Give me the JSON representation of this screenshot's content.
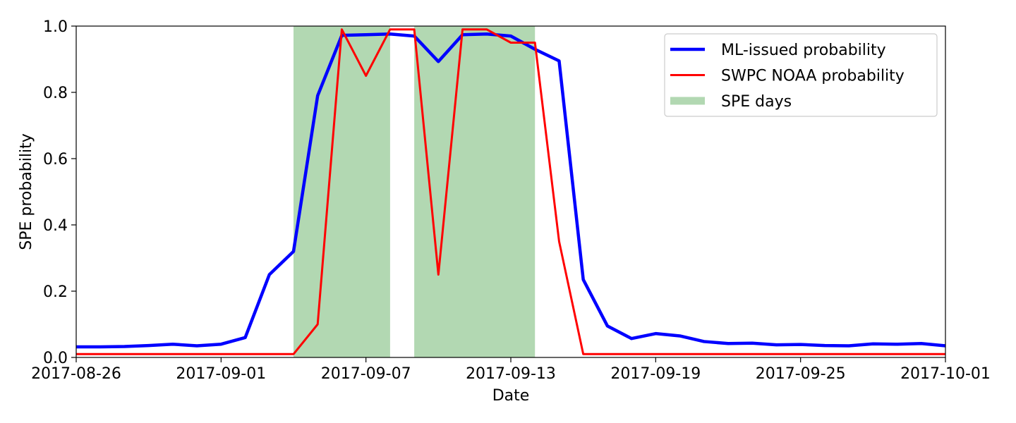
{
  "chart_data": {
    "type": "line",
    "xlabel": "Date",
    "ylabel": "SPE probability",
    "xlim": [
      "2017-08-26",
      "2017-10-01"
    ],
    "ylim": [
      0,
      1
    ],
    "x_ticks": [
      "2017-08-26",
      "2017-09-01",
      "2017-09-07",
      "2017-09-13",
      "2017-09-19",
      "2017-09-25",
      "2017-10-01"
    ],
    "y_ticks": [
      "0.0",
      "0.2",
      "0.4",
      "0.6",
      "0.8",
      "1.0"
    ],
    "grid": false,
    "legend_position": "top-right",
    "spe_days": [
      {
        "start": "2017-09-04",
        "end": "2017-09-08"
      },
      {
        "start": "2017-09-09",
        "end": "2017-09-14"
      }
    ],
    "series": [
      {
        "name": "ML-issued probability",
        "color": "#0000ff",
        "x": [
          "2017-08-26",
          "2017-08-27",
          "2017-08-28",
          "2017-08-29",
          "2017-08-30",
          "2017-08-31",
          "2017-09-01",
          "2017-09-02",
          "2017-09-03",
          "2017-09-04",
          "2017-09-05",
          "2017-09-06",
          "2017-09-07",
          "2017-09-08",
          "2017-09-09",
          "2017-09-10",
          "2017-09-11",
          "2017-09-12",
          "2017-09-13",
          "2017-09-14",
          "2017-09-15",
          "2017-09-16",
          "2017-09-17",
          "2017-09-18",
          "2017-09-19",
          "2017-09-20",
          "2017-09-21",
          "2017-09-22",
          "2017-09-23",
          "2017-09-24",
          "2017-09-25",
          "2017-09-26",
          "2017-09-27",
          "2017-09-28",
          "2017-09-29",
          "2017-09-30",
          "2017-10-01"
        ],
        "values": [
          0.032,
          0.032,
          0.033,
          0.036,
          0.04,
          0.035,
          0.04,
          0.06,
          0.25,
          0.32,
          0.79,
          0.972,
          0.974,
          0.976,
          0.97,
          0.893,
          0.974,
          0.976,
          0.97,
          0.93,
          0.895,
          0.235,
          0.095,
          0.057,
          0.072,
          0.065,
          0.048,
          0.042,
          0.043,
          0.038,
          0.039,
          0.036,
          0.035,
          0.041,
          0.04,
          0.042,
          0.035
        ]
      },
      {
        "name": "SWPC NOAA probability",
        "color": "#ff0000",
        "x": [
          "2017-08-26",
          "2017-08-27",
          "2017-08-28",
          "2017-08-29",
          "2017-08-30",
          "2017-08-31",
          "2017-09-01",
          "2017-09-02",
          "2017-09-03",
          "2017-09-04",
          "2017-09-05",
          "2017-09-06",
          "2017-09-07",
          "2017-09-08",
          "2017-09-09",
          "2017-09-10",
          "2017-09-11",
          "2017-09-12",
          "2017-09-13",
          "2017-09-14",
          "2017-09-15",
          "2017-09-16",
          "2017-09-17",
          "2017-09-18",
          "2017-09-19",
          "2017-09-20",
          "2017-09-21",
          "2017-09-22",
          "2017-09-23",
          "2017-09-24",
          "2017-09-25",
          "2017-09-26",
          "2017-09-27",
          "2017-09-28",
          "2017-09-29",
          "2017-09-30",
          "2017-10-01"
        ],
        "values": [
          0.01,
          0.01,
          0.01,
          0.01,
          0.01,
          0.01,
          0.01,
          0.01,
          0.01,
          0.01,
          0.1,
          0.99,
          0.85,
          0.99,
          0.99,
          0.25,
          0.99,
          0.99,
          0.95,
          0.95,
          0.35,
          0.01,
          0.01,
          0.01,
          0.01,
          0.01,
          0.01,
          0.01,
          0.01,
          0.01,
          0.01,
          0.01,
          0.01,
          0.01,
          0.01,
          0.01,
          0.01
        ]
      }
    ],
    "legend": [
      {
        "label": "ML-issued probability",
        "color": "#0000ff"
      },
      {
        "label": "SWPC NOAA probability",
        "color": "#ff0000"
      },
      {
        "label": "SPE days",
        "color": "#b2d8b2"
      }
    ]
  }
}
